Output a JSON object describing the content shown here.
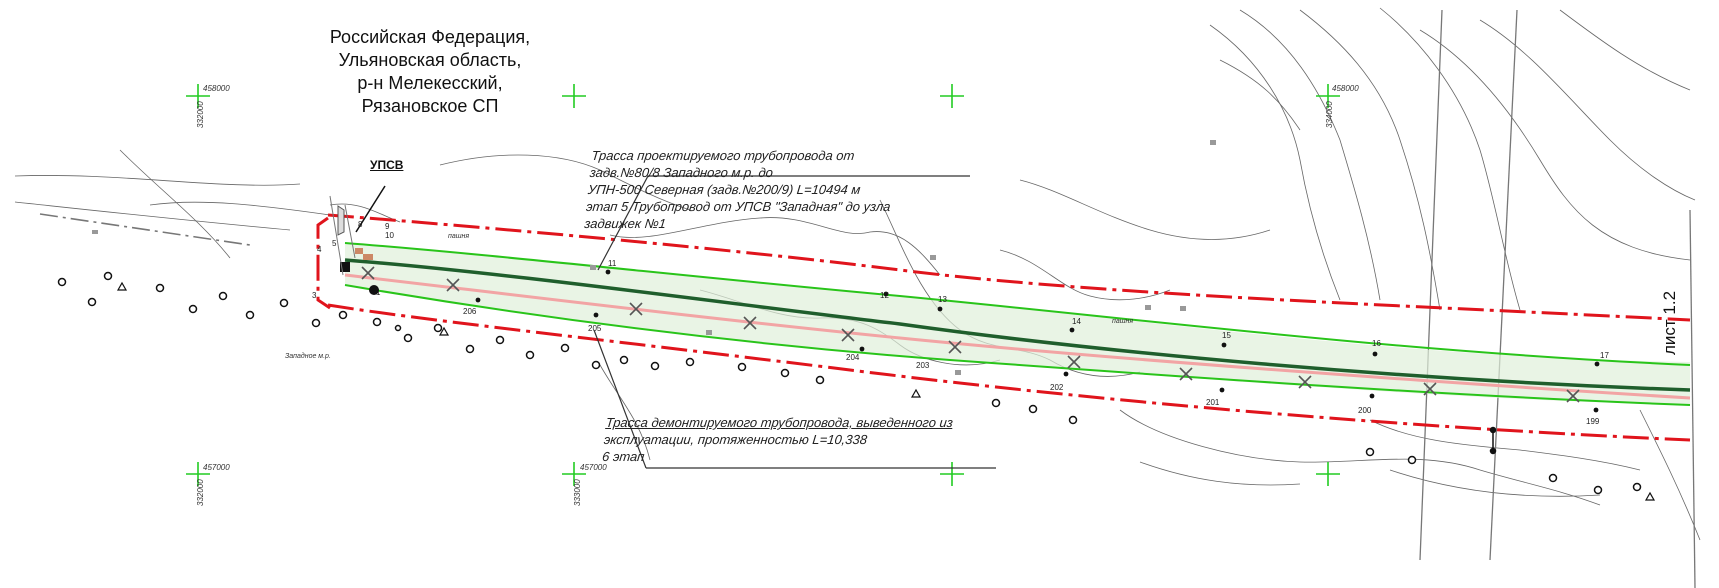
{
  "region": {
    "lines": [
      "Российская Федерация,",
      "Ульяновская область,",
      "р-н Мелекесский,",
      "Рязановское СП"
    ]
  },
  "callouts": {
    "design_route": {
      "line1": "Трасса проектируемого трубопровода от",
      "line2": "задв.№80/8 Западного м.р. до",
      "line3": "УПН-500 Северная (задв.№200/9) L=10494 м",
      "line4": "этап 5 Трубопровод от УПСВ \"Западная\" до узла",
      "line5": "задвижек №1"
    },
    "dismantle_route": {
      "line1": "Трасса демонтируемого трубопровода, выведенного из",
      "line2": "эксплуатации, протяженностью L=10,338",
      "line3": "6 этап"
    }
  },
  "labels": {
    "upsv": "УПСВ",
    "sheet": "лист 1.2",
    "zapadnoe": "Западное м.р.",
    "pashnya": "пашня",
    "grid_458000": "458000",
    "grid_457000": "457000",
    "grid_332000": "332000",
    "grid_333000": "333000",
    "grid_334000": "334000"
  },
  "stations_upper": [
    "8",
    "9",
    "10",
    "11",
    "12",
    "13",
    "14",
    "15",
    "16",
    "17"
  ],
  "stations_lower": [
    "206",
    "205",
    "204",
    "203",
    "202",
    "201",
    "200",
    "199"
  ],
  "stations_start": [
    "4",
    "5",
    "3",
    "1"
  ],
  "colors": {
    "boundary": "#e0141c",
    "design_line": "#1f5e2c",
    "corridor": "#29c41a",
    "old_pipe": "#f2a4a4",
    "grid_cross": "#22cc22",
    "contour": "#555555"
  }
}
